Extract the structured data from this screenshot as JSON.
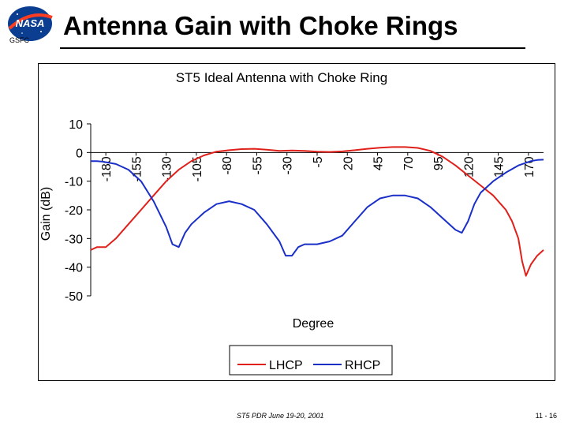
{
  "header": {
    "org": "GSFC",
    "title": "Antenna Gain with Choke Rings"
  },
  "footer": {
    "center": "ST5 PDR June 19-20, 2001",
    "right": "11 - 16"
  },
  "chart_data": {
    "type": "line",
    "title": "ST5 Ideal Antenna with Choke Ring",
    "xlabel": "Degree",
    "ylabel": "Gain (dB)",
    "xlim": [
      -180,
      180
    ],
    "ylim": [
      -50,
      10
    ],
    "xticks": [
      "-180",
      "-155",
      "-130",
      "-105",
      "-80",
      "-55",
      "-30",
      "-5",
      "20",
      "45",
      "70",
      "95",
      "120",
      "145",
      "170"
    ],
    "yticks": [
      "10",
      "0",
      "-10",
      "-20",
      "-30",
      "-40",
      "-50"
    ],
    "legend": "bottom",
    "grid": false,
    "series": [
      {
        "name": "LHCP",
        "color": "#e0201a",
        "x": [
          -180,
          -175,
          -168,
          -160,
          -150,
          -140,
          -130,
          -120,
          -110,
          -100,
          -90,
          -80,
          -70,
          -60,
          -50,
          -40,
          -30,
          -20,
          -10,
          0,
          10,
          20,
          30,
          40,
          50,
          60,
          70,
          80,
          90,
          100,
          110,
          120,
          130,
          140,
          150,
          155,
          160,
          163,
          166,
          170,
          175,
          180
        ],
        "y": [
          -34,
          -33,
          -33,
          -30,
          -25,
          -20,
          -15,
          -10,
          -6,
          -3,
          -1,
          0.3,
          0.8,
          1.2,
          1.3,
          1,
          0.6,
          0.7,
          0.6,
          0.3,
          0.2,
          0.4,
          0.8,
          1.3,
          1.7,
          1.9,
          1.9,
          1.6,
          0.6,
          -1.5,
          -4.5,
          -8,
          -11.5,
          -15,
          -20,
          -24,
          -30,
          -38,
          -43,
          -39,
          -36,
          -34
        ]
      },
      {
        "name": "RHCP",
        "color": "#1a2fc8",
        "x": [
          -180,
          -175,
          -170,
          -160,
          -150,
          -140,
          -130,
          -120,
          -115,
          -110,
          -105,
          -100,
          -90,
          -80,
          -70,
          -60,
          -50,
          -40,
          -30,
          -25,
          -20,
          -15,
          -10,
          -5,
          0,
          10,
          20,
          30,
          40,
          50,
          60,
          70,
          80,
          90,
          100,
          110,
          115,
          120,
          125,
          130,
          140,
          150,
          160,
          170,
          175,
          180
        ],
        "y": [
          -3,
          -3,
          -3.2,
          -4,
          -6,
          -10,
          -17,
          -26,
          -32,
          -33,
          -28,
          -25,
          -21,
          -18,
          -17,
          -18,
          -20,
          -25,
          -31,
          -36,
          -36,
          -33,
          -32,
          -32,
          -32,
          -31,
          -29,
          -24,
          -19,
          -16,
          -15,
          -15,
          -16,
          -19,
          -23,
          -27,
          -28,
          -24,
          -18,
          -14,
          -10,
          -7,
          -4.5,
          -3,
          -2.6,
          -2.5
        ]
      }
    ]
  }
}
